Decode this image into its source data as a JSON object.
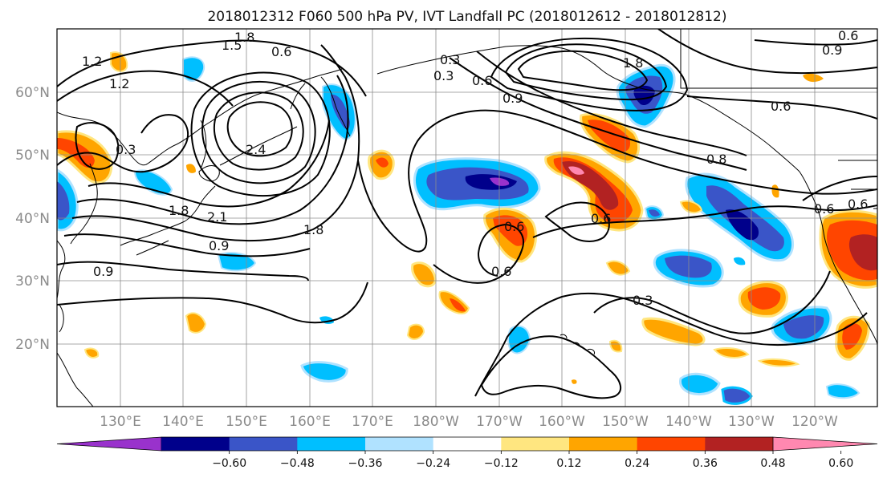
{
  "title": "2018012312 F060 500 hPa PV, IVT Landfall PC (2018012612 - 2018012812)",
  "map": {
    "lon_range": [
      120,
      250
    ],
    "lat_range": [
      10,
      70
    ],
    "lat_labels": [
      "20°N",
      "30°N",
      "40°N",
      "50°N",
      "60°N"
    ],
    "lon_labels": [
      "130°E",
      "140°E",
      "150°E",
      "160°E",
      "170°E",
      "180°W",
      "170°W",
      "160°W",
      "150°W",
      "140°W",
      "130°W",
      "120°W"
    ]
  },
  "contour_labels": [
    "1.8",
    "1.5",
    "1.2",
    "1.2",
    "0.6",
    "0.3",
    "0.6",
    "0.9",
    "1.8",
    "0.6",
    "0.6",
    "0.9",
    "0.3",
    "2.4",
    "1.8",
    "2.1",
    "1.8",
    "0.9",
    "0.9",
    "0.6",
    "0.6",
    "0.6",
    "0.6",
    "0.3",
    "0.6",
    "0.8",
    "0.3"
  ],
  "colorbar": {
    "ticks": [
      "−0.60",
      "−0.48",
      "−0.36",
      "−0.24",
      "−0.12",
      "0.12",
      "0.24",
      "0.36",
      "0.48",
      "0.60"
    ],
    "colors": [
      "#9932cc",
      "#00008b",
      "#3a55c8",
      "#00bfff",
      "#b0e2ff",
      "#ffffff",
      "#ffe680",
      "#ffa500",
      "#ff4500",
      "#b22222",
      "#ff88b0"
    ]
  }
}
